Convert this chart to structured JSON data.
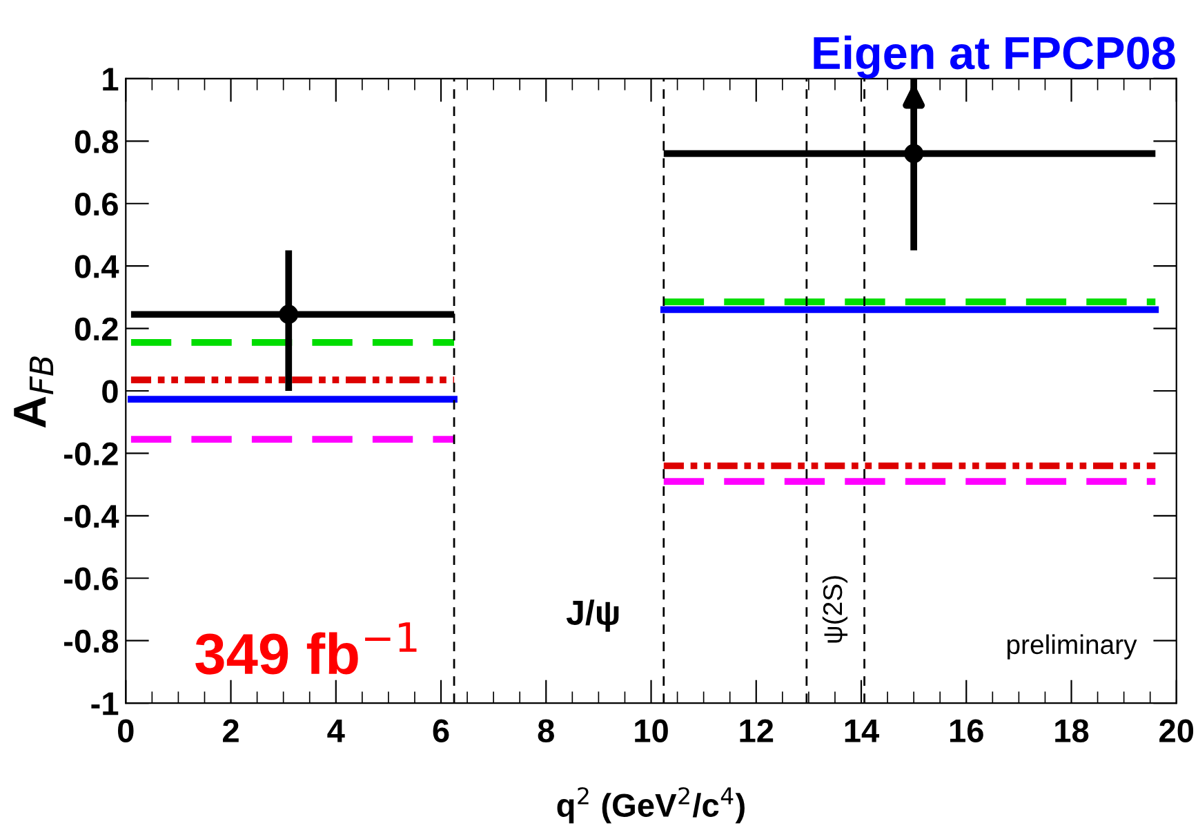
{
  "chart_data": {
    "type": "line",
    "title": "Eigen at FPCP08",
    "xlabel": "q$^{2}$ (GeV$^{2}$/c$^{4}$)",
    "ylabel": "A$_{FB}$",
    "xlim": [
      0,
      20
    ],
    "xticks": [
      0,
      2,
      4,
      6,
      8,
      10,
      12,
      14,
      16,
      18,
      20
    ],
    "ylim": [
      -1,
      1
    ],
    "yticks": [
      -1,
      -0.8,
      -0.6,
      -0.4,
      -0.2,
      0,
      0.2,
      0.4,
      0.6,
      0.8,
      1
    ],
    "grid": false,
    "legend": false,
    "marker": "none",
    "series": [
      {
        "type": "line",
        "color": "#00dd00",
        "line_style": "dashed",
        "x": [
          0.1,
          6.25,
          8,
          10.24,
          19.6
        ],
        "values": [
          0.155,
          0.155,
          null,
          0.285,
          0.285
        ]
      },
      {
        "type": "line",
        "color": "#dd0000",
        "line_style": "dotted",
        "x": [
          0.1,
          6.25,
          8,
          10.24,
          19.6
        ],
        "values": [
          0.035,
          0.035,
          null,
          -0.24,
          -0.24
        ]
      },
      {
        "type": "line",
        "color": "#0000ff",
        "line_style": "solid",
        "x": [
          0.1,
          6.25,
          8,
          10.24,
          19.6
        ],
        "values": [
          -0.027,
          -0.027,
          null,
          0.26,
          0.26
        ]
      },
      {
        "type": "line",
        "color": "#ff00ff",
        "line_style": "dashed",
        "x": [
          0.1,
          6.25,
          8,
          10.24,
          19.6
        ],
        "values": [
          -0.155,
          -0.155,
          null,
          -0.29,
          -0.29
        ]
      },
      {
        "type": "scatter",
        "color": "#000000",
        "marker": "circle",
        "x": [
          3.1,
          15
        ],
        "values": [
          0.245,
          0.76
        ],
        "xerrors": [
          [
            0.1,
            6.25
          ],
          [
            10.24,
            19.6
          ]
        ],
        "errors": [
          [
            0.0,
            0.45
          ],
          [
            0.45,
            1.0
          ]
        ]
      }
    ],
    "ref_lines": [
      {
        "axis": "x",
        "value": 6.25,
        "color": "#000000",
        "line_style": "dashed"
      },
      {
        "axis": "x",
        "value": 10.24,
        "color": "#000000",
        "line_style": "dashed"
      },
      {
        "axis": "x",
        "value": 12.96,
        "color": "#000000",
        "line_style": "dashed"
      },
      {
        "axis": "x",
        "value": 14.06,
        "color": "#000000",
        "line_style": "dashed"
      }
    ],
    "annotations": [
      "J/ψ",
      "ψ(2S)",
      "349 fb$^{−1}$",
      "preliminary"
    ]
  }
}
